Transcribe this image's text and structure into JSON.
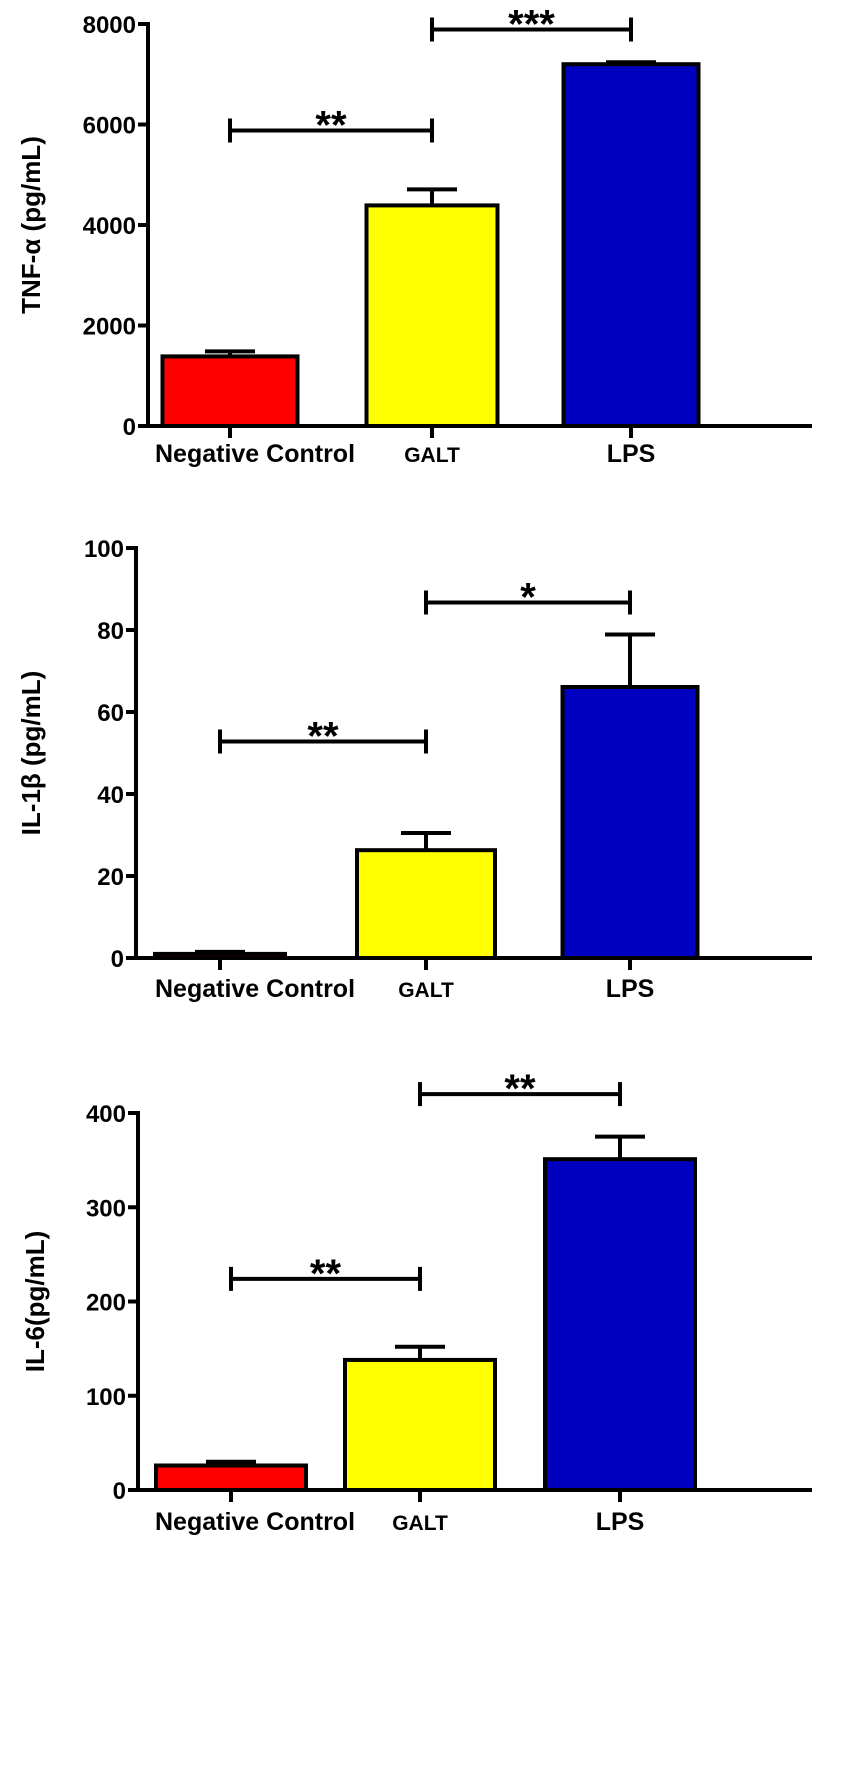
{
  "chart_data": [
    {
      "type": "bar",
      "title": "",
      "xlabel": "",
      "ylabel": "TNF-α (pg/mL)",
      "ylim": [
        0,
        8000
      ],
      "yticks": [
        "0",
        "2000",
        "4000",
        "6000",
        "8000"
      ],
      "categories": [
        "Negative Control",
        "GALT",
        "LPS"
      ],
      "values": [
        1385,
        4390,
        7200
      ],
      "error_upper": [
        1485,
        4710,
        7240
      ],
      "colors": [
        "#ff0000",
        "#ffff00",
        "#0000c0"
      ],
      "significance": [
        {
          "from": 0,
          "to": 1,
          "label": "**",
          "y": 5880
        },
        {
          "from": 1,
          "to": 2,
          "label": "***",
          "y": 7890
        }
      ]
    },
    {
      "type": "bar",
      "title": "",
      "xlabel": "",
      "ylabel": "IL-1β (pg/mL)",
      "ylim": [
        0,
        100
      ],
      "yticks": [
        "0",
        "20",
        "40",
        "60",
        "80",
        "100"
      ],
      "categories": [
        "Negative Control",
        "GALT",
        "LPS"
      ],
      "values": [
        1,
        26.3,
        66.1
      ],
      "error_upper": [
        1.5,
        30.5,
        78.9
      ],
      "colors": [
        "#ff0000",
        "#ffff00",
        "#0000c0"
      ],
      "significance": [
        {
          "from": 0,
          "to": 1,
          "label": "**",
          "y": 52.8
        },
        {
          "from": 1,
          "to": 2,
          "label": "*",
          "y": 86.7
        }
      ]
    },
    {
      "type": "bar",
      "title": "",
      "xlabel": "",
      "ylabel": "IL-6(pg/mL)",
      "ylim": [
        0,
        400
      ],
      "yticks": [
        "0",
        "100",
        "200",
        "300",
        "400"
      ],
      "categories": [
        "Negative Control",
        "GALT",
        "LPS"
      ],
      "values": [
        26,
        138,
        351
      ],
      "error_upper": [
        30,
        152,
        375
      ],
      "colors": [
        "#ff0000",
        "#ffff00",
        "#0000c0"
      ],
      "significance": [
        {
          "from": 0,
          "to": 1,
          "label": "**",
          "y": 224
        },
        {
          "from": 1,
          "to": 2,
          "label": "**",
          "y": 420
        }
      ]
    }
  ]
}
